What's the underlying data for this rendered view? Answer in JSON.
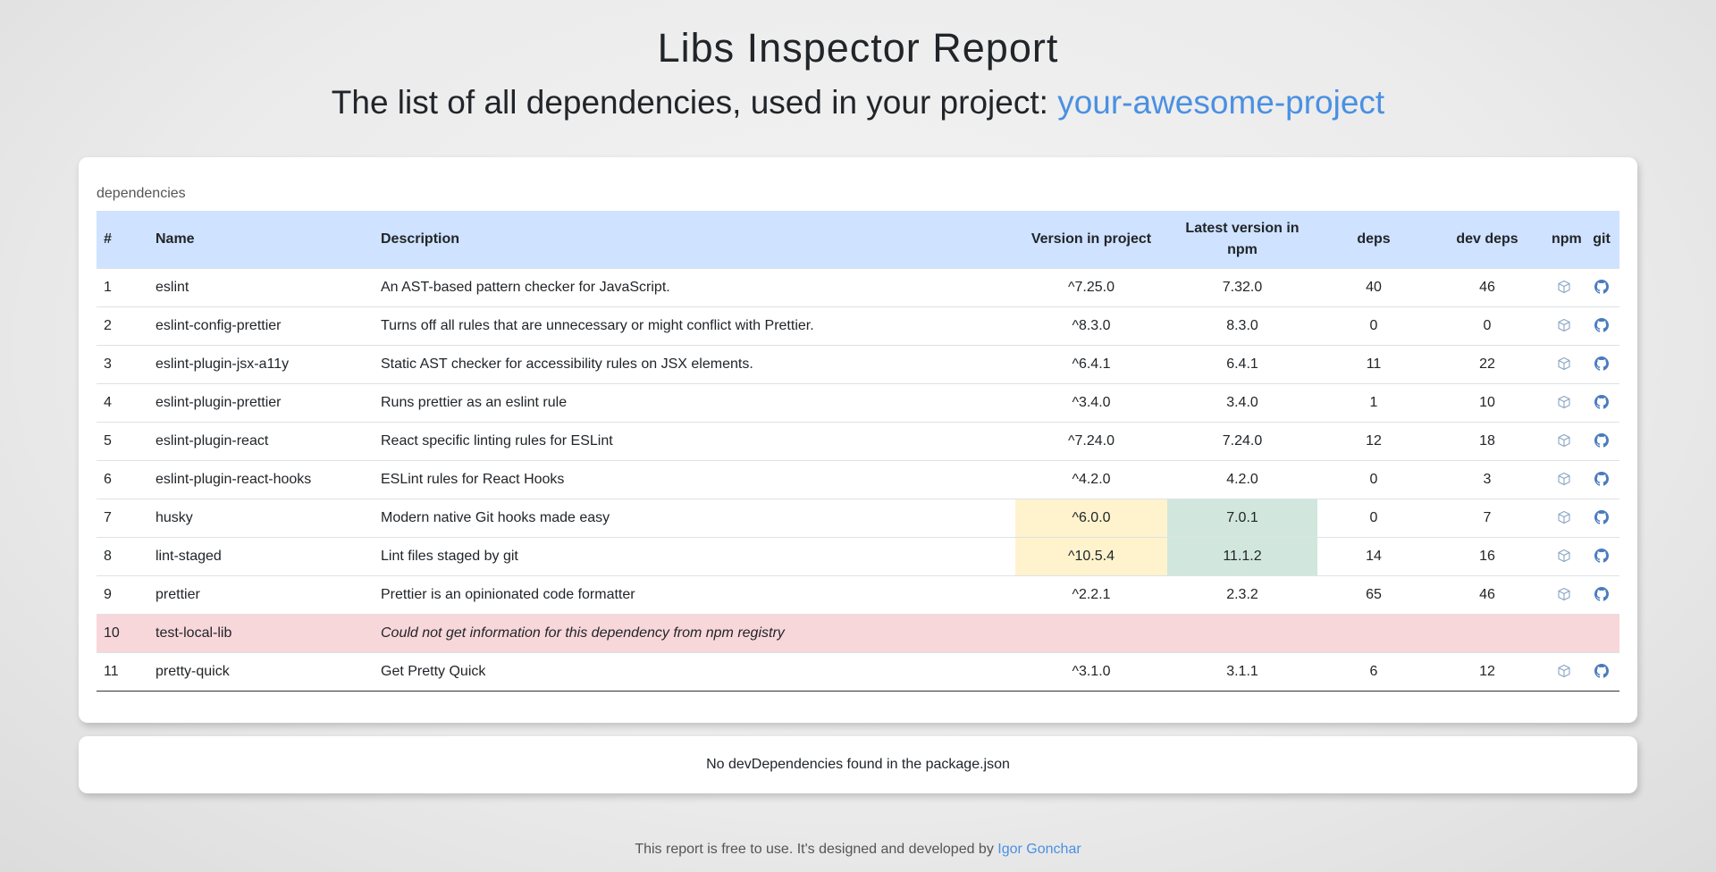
{
  "header": {
    "title": "Libs Inspector Report",
    "subtitle_prefix": "The list of all dependencies, used in your project: ",
    "project_name": "your-awesome-project"
  },
  "dependencies": {
    "caption": "dependencies",
    "columns": {
      "index": "#",
      "name": "Name",
      "description": "Description",
      "version_project": "Version in project",
      "version_latest": "Latest version in npm",
      "deps": "deps",
      "dev_deps": "dev deps",
      "npm": "npm",
      "git": "git"
    },
    "rows": [
      {
        "index": "1",
        "name": "eslint",
        "description": "An AST-based pattern checker for JavaScript.",
        "version_project": "^7.25.0",
        "version_latest": "7.32.0",
        "deps": "40",
        "dev_deps": "46",
        "status": "normal"
      },
      {
        "index": "2",
        "name": "eslint-config-prettier",
        "description": "Turns off all rules that are unnecessary or might conflict with Prettier.",
        "version_project": "^8.3.0",
        "version_latest": "8.3.0",
        "deps": "0",
        "dev_deps": "0",
        "status": "normal"
      },
      {
        "index": "3",
        "name": "eslint-plugin-jsx-a11y",
        "description": "Static AST checker for accessibility rules on JSX elements.",
        "version_project": "^6.4.1",
        "version_latest": "6.4.1",
        "deps": "11",
        "dev_deps": "22",
        "status": "normal"
      },
      {
        "index": "4",
        "name": "eslint-plugin-prettier",
        "description": "Runs prettier as an eslint rule",
        "version_project": "^3.4.0",
        "version_latest": "3.4.0",
        "deps": "1",
        "dev_deps": "10",
        "status": "normal"
      },
      {
        "index": "5",
        "name": "eslint-plugin-react",
        "description": "React specific linting rules for ESLint",
        "version_project": "^7.24.0",
        "version_latest": "7.24.0",
        "deps": "12",
        "dev_deps": "18",
        "status": "normal"
      },
      {
        "index": "6",
        "name": "eslint-plugin-react-hooks",
        "description": "ESLint rules for React Hooks",
        "version_project": "^4.2.0",
        "version_latest": "4.2.0",
        "deps": "0",
        "dev_deps": "3",
        "status": "normal"
      },
      {
        "index": "7",
        "name": "husky",
        "description": "Modern native Git hooks made easy",
        "version_project": "^6.0.0",
        "version_latest": "7.0.1",
        "deps": "0",
        "dev_deps": "7",
        "status": "outdated"
      },
      {
        "index": "8",
        "name": "lint-staged",
        "description": "Lint files staged by git",
        "version_project": "^10.5.4",
        "version_latest": "11.1.2",
        "deps": "14",
        "dev_deps": "16",
        "status": "outdated"
      },
      {
        "index": "9",
        "name": "prettier",
        "description": "Prettier is an opinionated code formatter",
        "version_project": "^2.2.1",
        "version_latest": "2.3.2",
        "deps": "65",
        "dev_deps": "46",
        "status": "normal"
      },
      {
        "index": "10",
        "name": "test-local-lib",
        "description": "Could not get information for this dependency from npm registry",
        "version_project": "",
        "version_latest": "",
        "deps": "",
        "dev_deps": "",
        "status": "error"
      },
      {
        "index": "11",
        "name": "pretty-quick",
        "description": "Get Pretty Quick",
        "version_project": "^3.1.0",
        "version_latest": "3.1.1",
        "deps": "6",
        "dev_deps": "12",
        "status": "normal"
      }
    ],
    "icons": {
      "npm": "package-icon",
      "git": "github-icon"
    },
    "colors": {
      "header_bg": "#cfe2ff",
      "outdated_project": "#fff3cd",
      "outdated_latest": "#d1e7dd",
      "error_row": "#f8d7da",
      "link": "#4a90e2"
    }
  },
  "dev_dependencies": {
    "message": "No devDependencies found in the package.json"
  },
  "footer": {
    "text": "This report is free to use. It's designed and developed by ",
    "author": "Igor Gonchar"
  }
}
